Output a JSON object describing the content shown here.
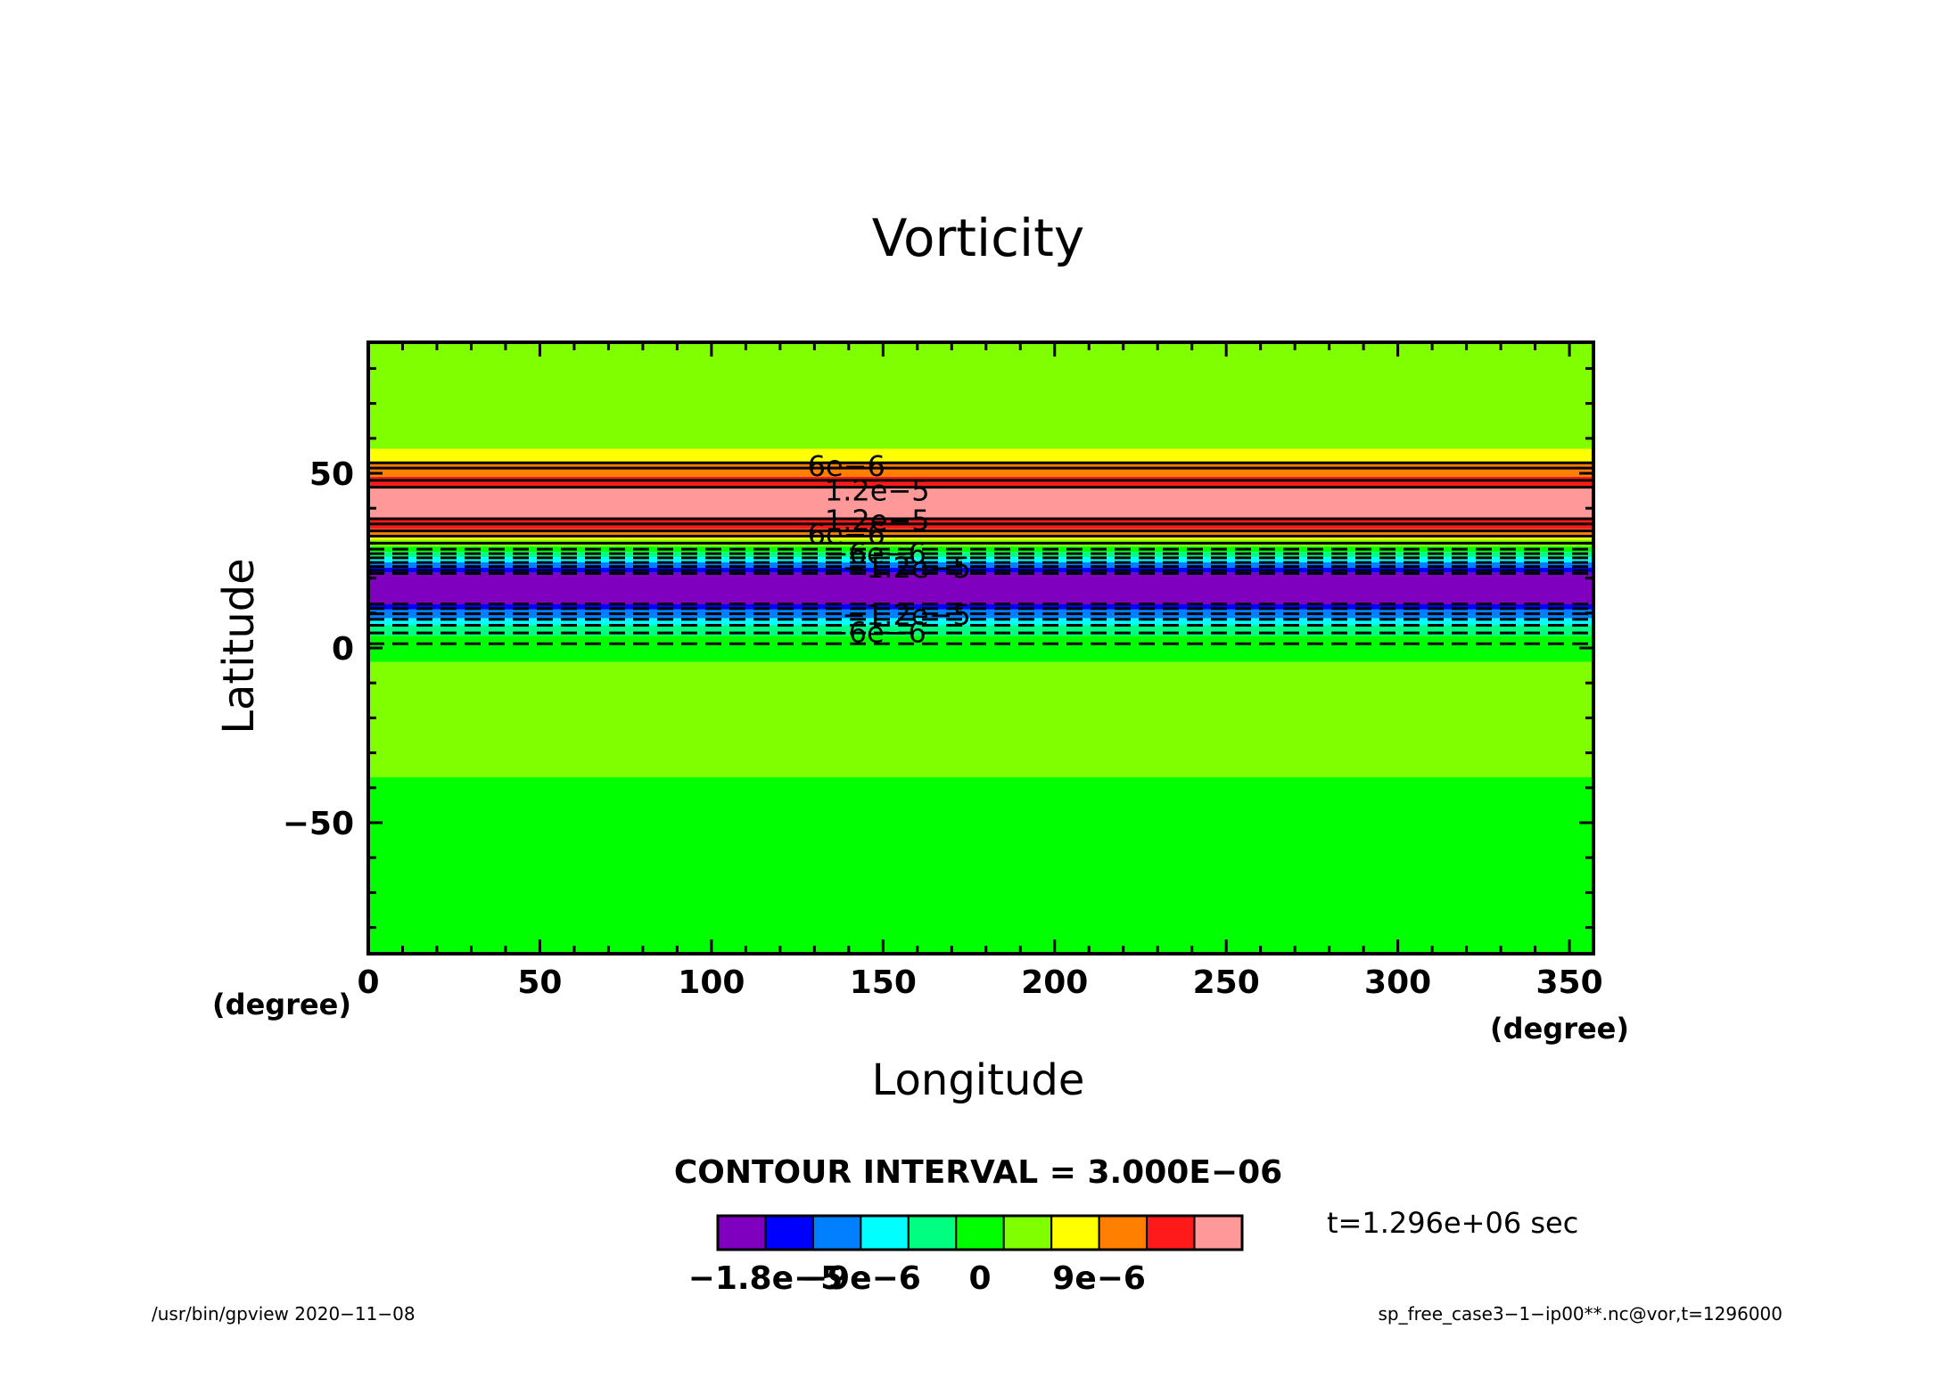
{
  "chart_data": {
    "type": "heatmap",
    "title": "Vorticity",
    "xlabel": "Longitude",
    "ylabel": "Latitude",
    "x_unit": "(degree)",
    "xlim": [
      0,
      357
    ],
    "ylim": [
      -87.5,
      87.5
    ],
    "x_ticks": [
      {
        "value": 0,
        "label": "0"
      },
      {
        "value": 50,
        "label": "50"
      },
      {
        "value": 100,
        "label": "100"
      },
      {
        "value": 150,
        "label": "150"
      },
      {
        "value": 200,
        "label": "200"
      },
      {
        "value": 250,
        "label": "250"
      },
      {
        "value": 300,
        "label": "300"
      },
      {
        "value": 350,
        "label": "350"
      }
    ],
    "y_ticks": [
      {
        "value": 50,
        "label": "50"
      },
      {
        "value": 0,
        "label": "0"
      },
      {
        "value": -50,
        "label": "−50"
      }
    ],
    "bands": [
      {
        "lat_from": 57,
        "lat_to": 87.5,
        "color": "#80ff00"
      },
      {
        "lat_from": 53,
        "lat_to": 57,
        "color": "#ffff00"
      },
      {
        "lat_from": 49,
        "lat_to": 53,
        "color": "#ff8000"
      },
      {
        "lat_from": 46,
        "lat_to": 49,
        "color": "#ff1a1a"
      },
      {
        "lat_from": 37,
        "lat_to": 46,
        "color": "#ff9999"
      },
      {
        "lat_from": 34,
        "lat_to": 37,
        "color": "#ff1a1a"
      },
      {
        "lat_from": 32,
        "lat_to": 34,
        "color": "#ff8000"
      },
      {
        "lat_from": 31,
        "lat_to": 32,
        "color": "#ffff00"
      },
      {
        "lat_from": 29,
        "lat_to": 31,
        "color": "#80ff00"
      },
      {
        "lat_from": 27.5,
        "lat_to": 29,
        "color": "#00ff00"
      },
      {
        "lat_from": 26,
        "lat_to": 27.5,
        "color": "#00ff80"
      },
      {
        "lat_from": 24.5,
        "lat_to": 26,
        "color": "#00ffff"
      },
      {
        "lat_from": 23,
        "lat_to": 24.5,
        "color": "#0080ff"
      },
      {
        "lat_from": 21.5,
        "lat_to": 23,
        "color": "#0000ff"
      },
      {
        "lat_from": 12.5,
        "lat_to": 21.5,
        "color": "#8000c0"
      },
      {
        "lat_from": 11,
        "lat_to": 12.5,
        "color": "#0000ff"
      },
      {
        "lat_from": 8.5,
        "lat_to": 11,
        "color": "#0080ff"
      },
      {
        "lat_from": 6.5,
        "lat_to": 8.5,
        "color": "#00ffff"
      },
      {
        "lat_from": 3.5,
        "lat_to": 6.5,
        "color": "#00ff80"
      },
      {
        "lat_from": -4,
        "lat_to": 3.5,
        "color": "#00ff00"
      },
      {
        "lat_from": -37,
        "lat_to": -4,
        "color": "#80ff00"
      },
      {
        "lat_from": -87.5,
        "lat_to": -37,
        "color": "#00ff00"
      }
    ],
    "contours": [
      {
        "lat": 53,
        "style": "solid"
      },
      {
        "lat": 51.5,
        "style": "solid"
      },
      {
        "lat": 48,
        "style": "solid"
      },
      {
        "lat": 46,
        "style": "solid"
      },
      {
        "lat": 37,
        "style": "solid"
      },
      {
        "lat": 35.5,
        "style": "solid"
      },
      {
        "lat": 33.5,
        "style": "solid"
      },
      {
        "lat": 32,
        "style": "solid"
      },
      {
        "lat": 30,
        "style": "solid"
      },
      {
        "lat": 28.3,
        "style": "dashed"
      },
      {
        "lat": 27,
        "style": "dashed"
      },
      {
        "lat": 25.8,
        "style": "dashed"
      },
      {
        "lat": 24.5,
        "style": "dashed"
      },
      {
        "lat": 23.3,
        "style": "dashed"
      },
      {
        "lat": 22.2,
        "style": "dashed"
      },
      {
        "lat": 21.3,
        "style": "dashed"
      },
      {
        "lat": 12.6,
        "style": "dashed"
      },
      {
        "lat": 11.3,
        "style": "dashed"
      },
      {
        "lat": 9.8,
        "style": "dashed"
      },
      {
        "lat": 8.2,
        "style": "dashed"
      },
      {
        "lat": 6.5,
        "style": "dashed"
      },
      {
        "lat": 4.3,
        "style": "dashed"
      },
      {
        "lat": 1.2,
        "style": "dashed"
      }
    ],
    "contour_labels": [
      {
        "text": "6e−6",
        "lon": 128,
        "lat": 52
      },
      {
        "text": "1.2e−5",
        "lon": 133,
        "lat": 45
      },
      {
        "text": "1.2e−5",
        "lon": 133,
        "lat": 36.5
      },
      {
        "text": "6e−6",
        "lon": 128,
        "lat": 32.5
      },
      {
        "text": "−6e−6",
        "lon": 133,
        "lat": 27
      },
      {
        "text": "−1.2e−5",
        "lon": 138,
        "lat": 23
      },
      {
        "text": "−1.2e−5",
        "lon": 138,
        "lat": 9.5
      },
      {
        "text": "−6e−6",
        "lon": 133,
        "lat": 4.5
      }
    ],
    "colorbar": {
      "colors": [
        "#8000c0",
        "#0000ff",
        "#0080ff",
        "#00ffff",
        "#00ff80",
        "#00ff00",
        "#80ff00",
        "#ffff00",
        "#ff8000",
        "#ff1a1a",
        "#ff9999"
      ],
      "ticks": [
        {
          "boundary": 1,
          "label": "−1.8e−5"
        },
        {
          "boundary": 3,
          "label": "−9e−6"
        },
        {
          "boundary": 5.5,
          "label": "0"
        },
        {
          "boundary": 8,
          "label": "9e−6"
        }
      ]
    }
  },
  "contour_interval": "CONTOUR INTERVAL = 3.000E−06",
  "time_label": "t=1.296e+06 sec",
  "footer_left": "/usr/bin/gpview   2020−11−08",
  "footer_right": "sp_free_case3−1−ip00**.nc@vor,t=1296000"
}
